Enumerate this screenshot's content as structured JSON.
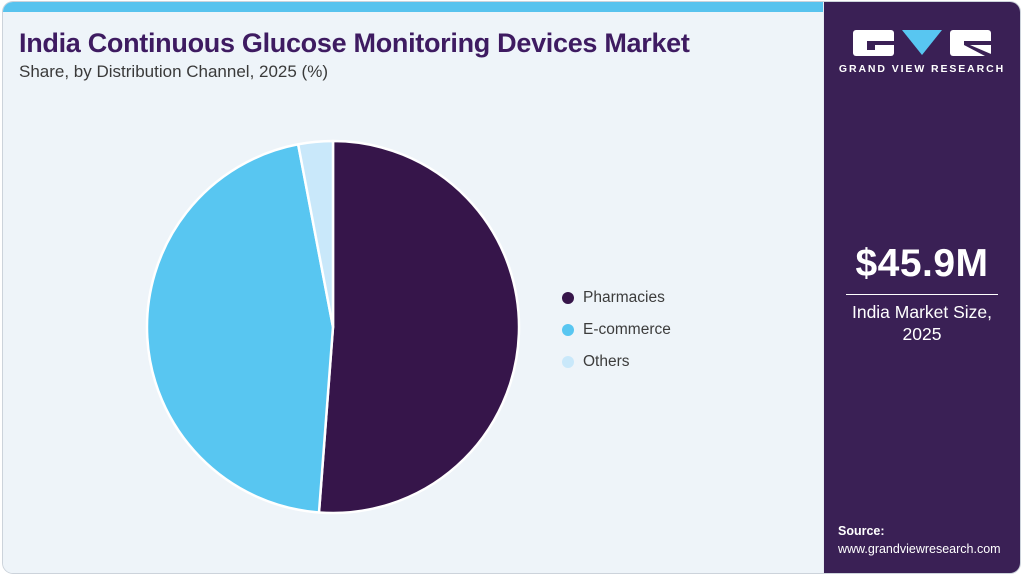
{
  "header": {
    "title": "India Continuous Glucose Monitoring Devices Market",
    "subtitle": "Share, by Distribution Channel, 2025 (%)"
  },
  "chart_data": {
    "type": "pie",
    "title": "India Continuous Glucose Monitoring Devices Market Share, by Distribution Channel, 2025 (%)",
    "categories": [
      "Pharmacies",
      "E-commerce",
      "Others"
    ],
    "values": [
      51.2,
      45.8,
      3.0
    ],
    "unit": "%",
    "colors": [
      "#36154a",
      "#58c6f1",
      "#c9e8fa"
    ],
    "start_angle_deg": 0,
    "direction": "clockwise",
    "legend_position": "right",
    "slice_gap_color": "#ffffff"
  },
  "sidebar": {
    "brand": "GRAND VIEW RESEARCH",
    "market_size": "$45.9M",
    "market_size_caption": "India Market Size, 2025",
    "source_label": "Source:",
    "source_url": "www.grandviewresearch.com",
    "colors": {
      "background": "#3a2055",
      "accent": "#58c6f1",
      "text": "#ffffff"
    }
  },
  "theme": {
    "title_color": "#3e1b61",
    "top_bar_color": "#58c3ee",
    "panel_background": "#eef4f9",
    "body_text_color": "#3c3c3c"
  }
}
